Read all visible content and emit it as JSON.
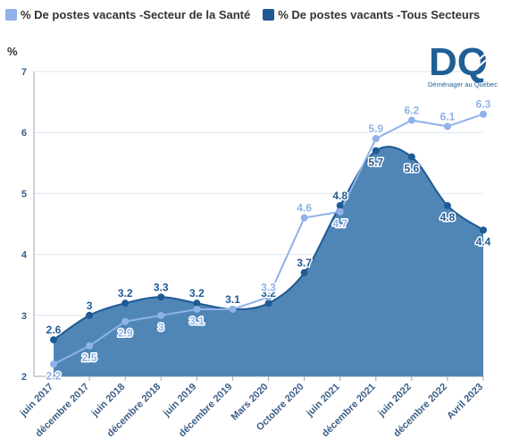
{
  "legend": {
    "series1_label": "% De postes vacants -Secteur de la Santé",
    "series2_label": "% De postes vacants -Tous Secteurs"
  },
  "logo": {
    "letters": "DQ",
    "caption": "Déménager au Québec"
  },
  "colors": {
    "sante": "#8fb2e8",
    "tous": "#1f5a94",
    "area": "#4f86b6",
    "axis": "#3a5f86",
    "grid": "#dde4ee"
  },
  "chart_data": {
    "type": "line",
    "ylabel": "%",
    "ylim": [
      2,
      7
    ],
    "yticks": [
      2,
      3,
      4,
      5,
      6,
      7
    ],
    "grid": true,
    "legend_position": "top-left",
    "categories": [
      "juin 2017",
      "décembre 2017",
      "juin 2018",
      "décembre 2018",
      "juin 2019",
      "décembre 2019",
      "Mars 2020",
      "Octobre 2020",
      "juin 2021",
      "décembre 2021",
      "juin 2022",
      "décembre 2022",
      "Avril 2023"
    ],
    "series": [
      {
        "name": "% De postes vacants -Secteur de la Santé",
        "style": "line",
        "values": [
          2.2,
          2.5,
          2.9,
          3,
          3.1,
          3.1,
          3.3,
          4.6,
          4.7,
          5.9,
          6.2,
          6.1,
          6.3
        ],
        "labels": [
          "2.2",
          "2.5",
          "2.9",
          "3",
          "3.1",
          "",
          "3.3",
          "4.6",
          "4.7",
          "5.9",
          "6.2",
          "6.1",
          "6.3"
        ]
      },
      {
        "name": "% De postes vacants -Tous Secteurs",
        "style": "area",
        "values": [
          2.6,
          3,
          3.2,
          3.3,
          3.2,
          3.1,
          3.2,
          3.7,
          4.8,
          5.7,
          5.6,
          4.8,
          4.4
        ],
        "labels": [
          "2.6",
          "3",
          "3.2",
          "3.3",
          "3.2",
          "3.1",
          "3.2",
          "3.7",
          "4.8",
          "5.7",
          "5.6",
          "4.8",
          "4.4"
        ]
      }
    ]
  }
}
